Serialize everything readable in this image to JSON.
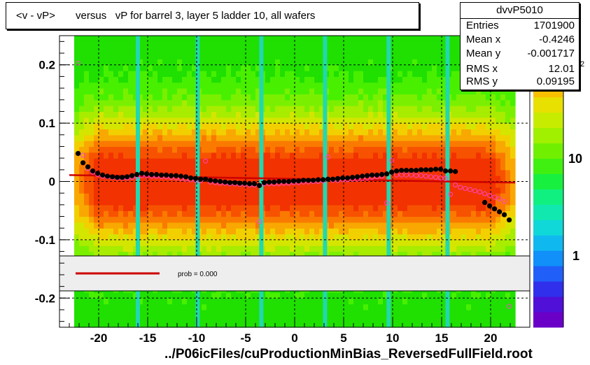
{
  "title": "<v - vP>       versus   vP for barrel 3, layer 5 ladder 10, all wafers",
  "stats": {
    "name": "dvvP5010",
    "rows": [
      {
        "label": "Entries",
        "value": "1701900"
      },
      {
        "label": "Mean x",
        "value": "-0.4246"
      },
      {
        "label": "Mean y",
        "value": "-0.001717"
      },
      {
        "label": "RMS x",
        "value": "12.01"
      },
      {
        "label": "RMS y",
        "value": "0.09195"
      }
    ]
  },
  "x_axis_title": "../P06icFiles/cuProductionMinBias_ReversedFullField.root",
  "legend_text": "prob = 0.000",
  "colorbar_labels": [
    "10",
    "1"
  ],
  "colorbar_partial_label": "2",
  "colors": {
    "profile": "#000000",
    "fit": "#cc0000",
    "points_alt": "#ff44cc",
    "legend_bg": "#eeeeee"
  },
  "chart_data": {
    "type": "heatmap",
    "xlim": [
      -24,
      24
    ],
    "ylim": [
      -0.25,
      0.25
    ],
    "x_ticks": [
      -20,
      -15,
      -10,
      -5,
      0,
      5,
      10,
      15,
      20
    ],
    "y_ticks": [
      -0.2,
      -0.1,
      0,
      0.1,
      0.2
    ],
    "y_tick_labels": [
      "-0.2",
      "-0.1",
      "0",
      "0.1",
      "0.2"
    ],
    "grid": true,
    "colorbar": "log",
    "empty_columns_x": [
      -16,
      -9.9,
      -3.4,
      3.1,
      9.6,
      15.6
    ],
    "series": [
      {
        "style": "filled-circle",
        "x": [
          -22.1,
          -21.6,
          -21.1,
          -20.6,
          -20.1,
          -19.6,
          -19.1,
          -18.6,
          -18.1,
          -17.6,
          -17.1,
          -16.6,
          -16.1,
          -15.6,
          -15.1,
          -14.6,
          -14.1,
          -13.6,
          -13.1,
          -12.6,
          -12.1,
          -11.6,
          -11.1,
          -10.6,
          -10.1,
          -9.6,
          -9.1,
          -8.6,
          -8.1,
          -7.6,
          -7.1,
          -6.6,
          -6.1,
          -5.6,
          -5.1,
          -4.6,
          -4.1,
          -3.6,
          -3.1,
          -2.6,
          -2.1,
          -1.6,
          -1.1,
          -0.6,
          -0.1,
          0.4,
          0.9,
          1.4,
          1.9,
          2.4,
          2.9,
          3.4,
          3.9,
          4.4,
          4.9,
          5.4,
          5.9,
          6.4,
          6.9,
          7.4,
          7.9,
          8.4,
          8.9,
          9.4,
          9.9,
          10.4,
          10.9,
          11.4,
          11.9,
          12.4,
          12.9,
          13.4,
          13.9,
          14.4,
          14.9,
          15.4,
          15.9,
          16.4,
          16.9,
          17.4,
          17.9,
          18.4,
          18.9,
          19.4,
          19.9,
          20.4,
          20.9,
          21.4,
          21.9
        ],
        "y": [
          0.048,
          0.032,
          0.025,
          0.018,
          0.014,
          0.011,
          0.009,
          0.008,
          0.007,
          0.007,
          0.008,
          0.01,
          0.012,
          0.014,
          0.013,
          0.012,
          0.012,
          0.011,
          0.011,
          0.01,
          0.01,
          0.009,
          0.008,
          0.006,
          0.005,
          0.004,
          0.004,
          0.002,
          0.001,
          0.0,
          -0.001,
          -0.002,
          -0.002,
          -0.003,
          -0.003,
          -0.004,
          -0.004,
          -0.007,
          -0.002,
          -0.001,
          -0.001,
          0.0,
          0.0,
          0.0,
          0.001,
          0.001,
          0.002,
          0.002,
          0.002,
          0.003,
          0.003,
          0.004,
          0.004,
          0.005,
          0.006,
          0.006,
          0.007,
          0.008,
          0.009,
          0.01,
          0.011,
          0.011,
          0.012,
          0.013,
          0.016,
          0.018,
          0.019,
          0.019,
          0.019,
          0.019,
          0.02,
          0.02,
          0.02,
          0.021,
          0.021,
          0.018,
          0.018,
          0.017,
          null,
          null,
          null,
          null,
          null,
          -0.036,
          -0.042,
          -0.047,
          -0.052,
          -0.057,
          -0.066
        ]
      },
      {
        "style": "open-circle",
        "x": [
          -22.1,
          -21.6,
          -21.1,
          -20.6,
          -20.1,
          -19.6,
          -19.1,
          -18.6,
          -18.1,
          -17.6,
          -17.1,
          -16.6,
          -16.1,
          -15.6,
          -15.1,
          -14.6,
          -14.1,
          -13.6,
          -13.1,
          -12.6,
          -12.1,
          -11.6,
          -11.1,
          -10.6,
          -10.1,
          -9.6,
          -9.1,
          -8.6,
          -8.1,
          -7.6,
          -7.1,
          -6.6,
          -6.1,
          -5.6,
          -5.1,
          -4.6,
          -4.1,
          -3.6,
          -3.1,
          -2.6,
          -2.1,
          -1.6,
          -1.1,
          -0.6,
          -0.1,
          0.4,
          0.9,
          1.4,
          1.9,
          2.4,
          2.9,
          3.4,
          3.9,
          4.4,
          4.9,
          5.4,
          5.9,
          6.4,
          6.9,
          7.4,
          7.9,
          8.4,
          8.9,
          9.4,
          9.9,
          10.4,
          10.9,
          11.4,
          11.9,
          12.4,
          12.9,
          13.4,
          13.9,
          14.4,
          14.9,
          15.4,
          15.9,
          16.4,
          16.9,
          17.4,
          17.9,
          18.4,
          18.9,
          19.4,
          19.9,
          20.4,
          20.9,
          21.4,
          21.9
        ],
        "y": [
          0.203,
          0.045,
          0.022,
          0.016,
          0.012,
          0.009,
          0.008,
          0.007,
          0.006,
          0.006,
          0.006,
          0.007,
          0.008,
          0.01,
          0.01,
          0.009,
          0.009,
          0.008,
          0.008,
          0.007,
          0.006,
          0.005,
          0.004,
          0.003,
          0.002,
          0.001,
          0.035,
          -0.001,
          -0.002,
          -0.003,
          -0.003,
          -0.004,
          -0.004,
          -0.005,
          -0.005,
          -0.006,
          -0.006,
          -0.069,
          -0.004,
          -0.004,
          -0.004,
          -0.004,
          -0.003,
          -0.003,
          -0.002,
          -0.002,
          -0.001,
          -0.001,
          0.0,
          0.0,
          0.001,
          0.042,
          0.002,
          0.002,
          0.003,
          0.003,
          0.004,
          0.004,
          0.005,
          0.006,
          0.007,
          0.008,
          0.009,
          -0.037,
          0.036,
          0.011,
          0.011,
          0.011,
          0.011,
          0.01,
          0.01,
          0.009,
          0.008,
          0.007,
          0.006,
          0.005,
          -0.022,
          -0.006,
          -0.01,
          -0.012,
          -0.014,
          -0.016,
          -0.018,
          -0.021,
          -0.024,
          -0.027,
          -0.03,
          -0.034,
          -0.214
        ]
      }
    ],
    "fit": {
      "x": [
        -23,
        22.5
      ],
      "y": [
        0.011,
        -0.002
      ]
    }
  }
}
